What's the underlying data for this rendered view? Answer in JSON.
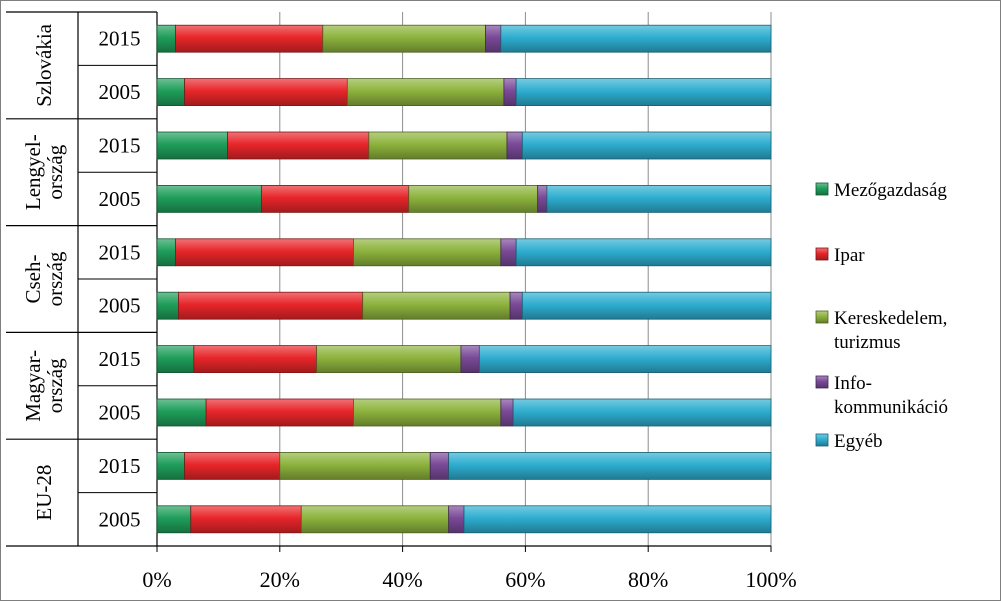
{
  "chart_data": {
    "type": "bar",
    "orientation": "horizontal",
    "stacked": "percent",
    "xlim": [
      0,
      100
    ],
    "x_ticks": [
      "0%",
      "20%",
      "40%",
      "60%",
      "80%",
      "100%"
    ],
    "grid": true,
    "legend_position": "right",
    "groups": [
      {
        "label_lines": [
          "Szlovákia"
        ],
        "categories": [
          "2015",
          "2005"
        ]
      },
      {
        "label_lines": [
          "Lengyel-",
          "ország"
        ],
        "categories": [
          "2015",
          "2005"
        ]
      },
      {
        "label_lines": [
          "Cseh-",
          "ország"
        ],
        "categories": [
          "2015",
          "2005"
        ]
      },
      {
        "label_lines": [
          "Magyar-",
          "ország"
        ],
        "categories": [
          "2015",
          "2005"
        ]
      },
      {
        "label_lines": [
          "EU-28"
        ],
        "categories": [
          "2015",
          "2005"
        ]
      }
    ],
    "series": [
      {
        "name": "Mezőgazdaság",
        "label_lines": [
          "Mezőgazdaság"
        ],
        "color": "#1f9e5a",
        "values": [
          3,
          4.5,
          11.5,
          17,
          3,
          3.5,
          6,
          8,
          4.5,
          5.5
        ]
      },
      {
        "name": "Ipar",
        "label_lines": [
          "Ipar"
        ],
        "color": "#e8262a",
        "values": [
          24,
          26.5,
          23,
          24,
          29,
          30,
          20,
          24,
          15.5,
          18
        ]
      },
      {
        "name": "Kereskedelem, turizmus",
        "label_lines": [
          "Kereskedelem,",
          "turizmus"
        ],
        "color": "#8db33d",
        "values": [
          26.5,
          25.5,
          22.5,
          21,
          24,
          24,
          23.5,
          24,
          24.5,
          24
        ]
      },
      {
        "name": "Info-kommunikáció",
        "label_lines": [
          "Info-",
          "kommunikáció"
        ],
        "color": "#7a4a98",
        "values": [
          2.5,
          2,
          2.5,
          1.5,
          2.5,
          2,
          3,
          2,
          3,
          2.5
        ]
      },
      {
        "name": "Egyéb",
        "label_lines": [
          "Egyéb"
        ],
        "color": "#2eaed0",
        "values": [
          44,
          41.5,
          40.5,
          36.5,
          41.5,
          40.5,
          47.5,
          42,
          52.5,
          50
        ]
      }
    ]
  }
}
